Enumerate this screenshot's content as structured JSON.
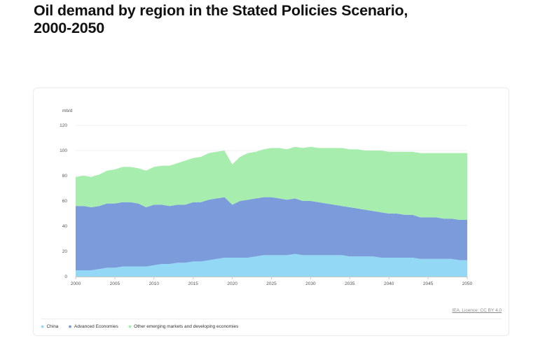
{
  "page": {
    "title": "Oil demand by region in the Stated Policies Scenario, 2000-2050"
  },
  "source": {
    "text": "IEA. Licence: CC BY 4.0"
  },
  "colors": {
    "china": "#93d8f5",
    "advanced": "#7b9bda",
    "other": "#a7eeae",
    "grid": "#efefef",
    "axis": "#c8c8c8",
    "tick_text": "#555555"
  },
  "chart_data": {
    "type": "area",
    "stacked": true,
    "title": "Oil demand by region in the Stated Policies Scenario, 2000-2050",
    "ylabel": "mb/d",
    "xlabel": "",
    "ylim": [
      0,
      120
    ],
    "yticks": [
      0,
      20,
      40,
      60,
      80,
      100,
      120
    ],
    "xlim": [
      2000,
      2050
    ],
    "xticks": [
      2000,
      2005,
      2010,
      2015,
      2020,
      2025,
      2030,
      2035,
      2040,
      2045,
      2050
    ],
    "grid": true,
    "legend_position": "bottom-left",
    "x": [
      2000,
      2001,
      2002,
      2003,
      2004,
      2005,
      2006,
      2007,
      2008,
      2009,
      2010,
      2011,
      2012,
      2013,
      2014,
      2015,
      2016,
      2017,
      2018,
      2019,
      2020,
      2021,
      2022,
      2023,
      2024,
      2025,
      2026,
      2027,
      2028,
      2029,
      2030,
      2031,
      2032,
      2033,
      2034,
      2035,
      2036,
      2037,
      2038,
      2039,
      2040,
      2041,
      2042,
      2043,
      2044,
      2045,
      2046,
      2047,
      2048,
      2049,
      2050
    ],
    "series": [
      {
        "name": "China",
        "color_key": "china",
        "values": [
          5,
          5,
          5,
          6,
          7,
          7,
          8,
          8,
          8,
          8,
          9,
          10,
          10,
          11,
          11,
          12,
          12,
          13,
          14,
          15,
          15,
          15,
          15,
          16,
          17,
          17,
          17,
          17,
          18,
          17,
          17,
          17,
          17,
          17,
          17,
          16,
          16,
          16,
          16,
          15,
          15,
          15,
          15,
          15,
          14,
          14,
          14,
          14,
          14,
          13,
          13
        ]
      },
      {
        "name": "Advanced Economies",
        "color_key": "advanced",
        "values": [
          51,
          51,
          50,
          50,
          51,
          51,
          51,
          51,
          50,
          47,
          48,
          47,
          46,
          46,
          46,
          47,
          47,
          48,
          48,
          48,
          42,
          45,
          46,
          46,
          46,
          46,
          45,
          44,
          44,
          43,
          43,
          42,
          41,
          40,
          39,
          39,
          38,
          37,
          36,
          36,
          35,
          35,
          34,
          34,
          33,
          33,
          33,
          32,
          32,
          32,
          32
        ]
      },
      {
        "name": "Other emerging markets and developing economies",
        "color_key": "other",
        "values": [
          23,
          24,
          24,
          25,
          26,
          27,
          28,
          28,
          28,
          29,
          30,
          31,
          32,
          33,
          35,
          35,
          36,
          37,
          37,
          37,
          32,
          35,
          37,
          37,
          38,
          39,
          40,
          40,
          41,
          42,
          43,
          43,
          44,
          45,
          46,
          46,
          47,
          47,
          48,
          49,
          49,
          49,
          50,
          50,
          51,
          51,
          51,
          52,
          52,
          53,
          53
        ]
      }
    ]
  }
}
